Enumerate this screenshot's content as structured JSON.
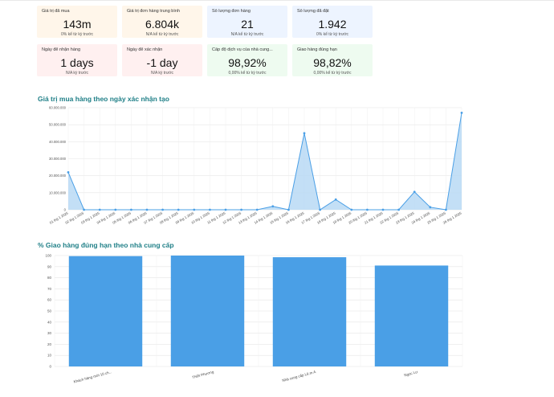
{
  "cards": [
    {
      "label": "Giá trị đã mua",
      "value": "143m",
      "sub": "0% kể từ kỳ trước",
      "color": "orange"
    },
    {
      "label": "Giá trị đơn hàng trung bình",
      "value": "6.804k",
      "sub": "N/A kể từ kỳ trước",
      "color": "orange"
    },
    {
      "label": "Số lượng đơn hàng",
      "value": "21",
      "sub": "N/A kể từ kỳ trước",
      "color": "blue"
    },
    {
      "label": "Số lượng đã đặt",
      "value": "1.942",
      "sub": "0% kể từ kỳ trước",
      "color": "blue"
    },
    {
      "label": "Ngày để nhận hàng",
      "value": "1 days",
      "sub": "N/A kỳ trước",
      "color": "red"
    },
    {
      "label": "Ngày để xác nhận",
      "value": "-1 day",
      "sub": "N/A kỳ trước",
      "color": "red"
    },
    {
      "label": "Cấp độ dịch vụ của nhà cung...",
      "value": "98,92%",
      "sub": "0,00% kể từ kỳ trước",
      "color": "green"
    },
    {
      "label": "Giao hàng đúng hạn",
      "value": "98,82%",
      "sub": "0,00% kể từ kỳ trước",
      "color": "green"
    }
  ],
  "colors": {
    "accent": "#4a9fe6",
    "fill": "#b9d9f5",
    "title": "#1f7f87"
  },
  "chart_data": [
    {
      "type": "area",
      "title": "Giá trị mua hàng theo ngày xác nhận tạo",
      "ylim": [
        0,
        60000000
      ],
      "yticks": [
        0,
        10000000,
        20000000,
        30000000,
        40000000,
        50000000,
        60000000
      ],
      "ytick_labels": [
        "0",
        "10.000.000",
        "20.000.000",
        "30.000.000",
        "40.000.000",
        "50.000.000",
        "60.000.000"
      ],
      "categories": [
        "01 thg 1 2025",
        "02 thg 1 2025",
        "03 thg 1 2025",
        "04 thg 1 2025",
        "05 thg 1 2025",
        "06 thg 1 2025",
        "07 thg 1 2025",
        "08 thg 1 2025",
        "09 thg 1 2025",
        "10 thg 1 2025",
        "11 thg 1 2025",
        "12 thg 1 2025",
        "13 thg 1 2025",
        "14 thg 1 2025",
        "15 thg 1 2025",
        "16 thg 1 2025",
        "17 thg 1 2025",
        "18 thg 1 2025",
        "19 thg 1 2025",
        "20 thg 1 2025",
        "21 thg 1 2025",
        "22 thg 1 2025",
        "23 thg 1 2025",
        "24 thg 1 2025",
        "25 thg 1 2025",
        "26 thg 1 2025"
      ],
      "values": [
        22000000,
        0,
        0,
        0,
        0,
        0,
        0,
        0,
        0,
        0,
        0,
        0,
        0,
        2000000,
        0,
        45000000,
        0,
        6000000,
        0,
        0,
        0,
        0,
        10500000,
        1500000,
        0,
        57000000
      ]
    },
    {
      "type": "bar",
      "title": "% Giao hàng đúng hạn theo nhà cung cấp",
      "ylim": [
        0,
        100
      ],
      "yticks": [
        0,
        10,
        20,
        30,
        40,
        50,
        60,
        70,
        80,
        90,
        100
      ],
      "categories": [
        "Khách hàng mới 10 ch...",
        "Thiết Phương",
        "Nhà cung cấp Lê.m A",
        "Ngọc Lư"
      ],
      "values": [
        99.5,
        100,
        98.5,
        91
      ]
    }
  ]
}
